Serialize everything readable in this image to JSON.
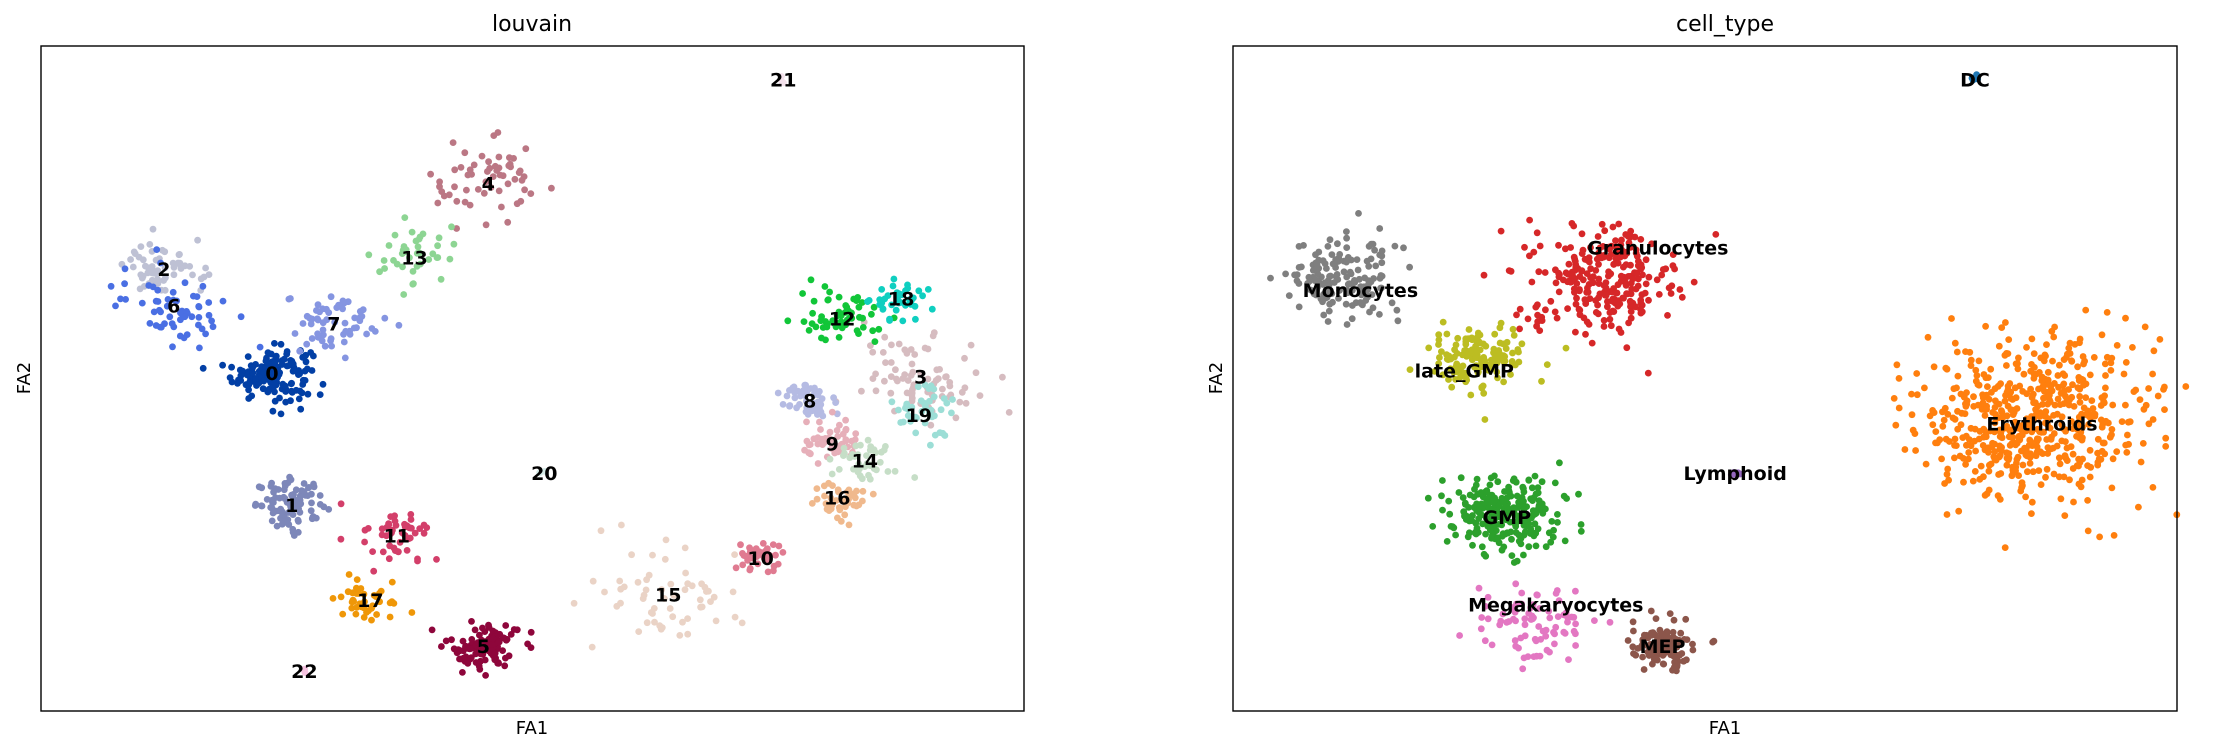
{
  "chart_data": [
    {
      "type": "scatter",
      "title": "louvain",
      "xlabel": "FA1",
      "ylabel": "FA2",
      "xlim": [
        0,
        1000
      ],
      "ylim": [
        0,
        1000
      ],
      "grid": false,
      "legend": "on data",
      "clusters": [
        {
          "label": "0",
          "color": "#023fa5",
          "x": 235,
          "y": 508,
          "spread": 20,
          "n": 150,
          "label_x": 235,
          "label_y": 508
        },
        {
          "label": "1",
          "color": "#7d87b9",
          "x": 255,
          "y": 310,
          "spread": 18,
          "n": 90,
          "label_x": 255,
          "label_y": 310
        },
        {
          "label": "2",
          "color": "#bec1d4",
          "x": 125,
          "y": 665,
          "spread": 20,
          "n": 60,
          "label_x": 125,
          "label_y": 665
        },
        {
          "label": "3",
          "color": "#d6bcc0",
          "x": 895,
          "y": 503,
          "spread": 30,
          "n": 80,
          "label_x": 895,
          "label_y": 503
        },
        {
          "label": "4",
          "color": "#bb7784",
          "x": 455,
          "y": 793,
          "spread": 30,
          "n": 60,
          "label_x": 455,
          "label_y": 793
        },
        {
          "label": "5",
          "color": "#8e063b",
          "x": 450,
          "y": 98,
          "spread": 18,
          "n": 110,
          "label_x": 450,
          "label_y": 98
        },
        {
          "label": "6",
          "color": "#4a6fe3",
          "x": 135,
          "y": 610,
          "spread": 30,
          "n": 60,
          "label_x": 135,
          "label_y": 610
        },
        {
          "label": "7",
          "color": "#8595e1",
          "x": 298,
          "y": 583,
          "spread": 25,
          "n": 60,
          "label_x": 298,
          "label_y": 583
        },
        {
          "label": "8",
          "color": "#b5bbe3",
          "x": 782,
          "y": 467,
          "spread": 15,
          "n": 50,
          "label_x": 782,
          "label_y": 467
        },
        {
          "label": "9",
          "color": "#e6afb9",
          "x": 805,
          "y": 402,
          "spread": 15,
          "n": 50,
          "label_x": 805,
          "label_y": 402
        },
        {
          "label": "10",
          "color": "#e07b91",
          "x": 732,
          "y": 230,
          "spread": 12,
          "n": 40,
          "label_x": 732,
          "label_y": 230
        },
        {
          "label": "11",
          "color": "#d33f6a",
          "x": 362,
          "y": 264,
          "spread": 18,
          "n": 50,
          "label_x": 362,
          "label_y": 264
        },
        {
          "label": "12",
          "color": "#11c638",
          "x": 815,
          "y": 590,
          "spread": 20,
          "n": 60,
          "label_x": 815,
          "label_y": 590
        },
        {
          "label": "13",
          "color": "#8dd593",
          "x": 380,
          "y": 682,
          "spread": 25,
          "n": 40,
          "label_x": 380,
          "label_y": 682
        },
        {
          "label": "14",
          "color": "#c6dec7",
          "x": 838,
          "y": 377,
          "spread": 15,
          "n": 40,
          "label_x": 838,
          "label_y": 377
        },
        {
          "label": "15",
          "color": "#ead3c6",
          "x": 638,
          "y": 175,
          "spread": 40,
          "n": 60,
          "label_x": 638,
          "label_y": 175
        },
        {
          "label": "16",
          "color": "#f0b98d",
          "x": 810,
          "y": 321,
          "spread": 15,
          "n": 40,
          "label_x": 810,
          "label_y": 321
        },
        {
          "label": "17",
          "color": "#ef9708",
          "x": 335,
          "y": 167,
          "spread": 20,
          "n": 40,
          "label_x": 335,
          "label_y": 167
        },
        {
          "label": "18",
          "color": "#0fcfc0",
          "x": 875,
          "y": 620,
          "spread": 15,
          "n": 40,
          "label_x": 875,
          "label_y": 620
        },
        {
          "label": "19",
          "color": "#9cded6",
          "x": 893,
          "y": 445,
          "spread": 20,
          "n": 40,
          "label_x": 893,
          "label_y": 445
        },
        {
          "label": "20",
          "color": "#d5eae7",
          "x": 512,
          "y": 358,
          "spread": 3,
          "n": 3,
          "label_x": 512,
          "label_y": 358
        },
        {
          "label": "21",
          "color": "#f3e1eb",
          "x": 755,
          "y": 950,
          "spread": 3,
          "n": 3,
          "label_x": 755,
          "label_y": 950
        },
        {
          "label": "22",
          "color": "#f6c4e1",
          "x": 268,
          "y": 60,
          "spread": 3,
          "n": 3,
          "label_x": 268,
          "label_y": 60
        }
      ]
    },
    {
      "type": "scatter",
      "title": "cell_type",
      "xlabel": "FA1",
      "ylabel": "FA2",
      "xlim": [
        0,
        1000
      ],
      "ylim": [
        0,
        1000
      ],
      "grid": false,
      "legend": "on data",
      "clusters": [
        {
          "label": "DC",
          "color": "#1f77b4",
          "x": 786,
          "y": 950,
          "spread": 3,
          "n": 6,
          "label_x": 786,
          "label_y": 950
        },
        {
          "label": "Granulocytes",
          "color": "#d62728",
          "x": 390,
          "y": 650,
          "spread": 40,
          "n": 260,
          "label_x": 450,
          "label_y": 697
        },
        {
          "label": "Monocytes",
          "color": "#7f7f7f",
          "x": 115,
          "y": 650,
          "spread": 30,
          "n": 160,
          "label_x": 135,
          "label_y": 633
        },
        {
          "label": "late_GMP",
          "color": "#bcbd22",
          "x": 258,
          "y": 530,
          "spread": 25,
          "n": 140,
          "label_x": 245,
          "label_y": 512
        },
        {
          "label": "Erythroids",
          "color": "#ff7f0e",
          "x": 850,
          "y": 440,
          "spread": 60,
          "n": 560,
          "label_x": 857,
          "label_y": 432
        },
        {
          "label": "Lymphoid",
          "color": "#9467bd",
          "x": 532,
          "y": 358,
          "spread": 3,
          "n": 6,
          "label_x": 532,
          "label_y": 358
        },
        {
          "label": "GMP",
          "color": "#2ca02c",
          "x": 285,
          "y": 295,
          "spread": 30,
          "n": 260,
          "label_x": 290,
          "label_y": 292
        },
        {
          "label": "Megakaryocytes",
          "color": "#e377c2",
          "x": 320,
          "y": 130,
          "spread": 30,
          "n": 80,
          "label_x": 342,
          "label_y": 160
        },
        {
          "label": "MEP",
          "color": "#8c564b",
          "x": 455,
          "y": 100,
          "spread": 18,
          "n": 120,
          "label_x": 455,
          "label_y": 98
        }
      ]
    }
  ]
}
